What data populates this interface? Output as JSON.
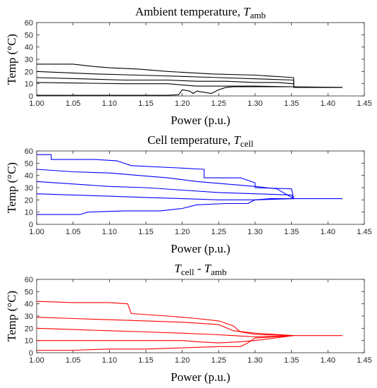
{
  "chart_data": [
    {
      "type": "line",
      "title_parts": {
        "text": "Ambient temperature, ",
        "math": "T",
        "sub": "amb"
      },
      "xlabel": "Power (p.u.)",
      "ylabel": "Temp (°C)",
      "xlim": [
        1.0,
        1.45
      ],
      "ylim": [
        0,
        60
      ],
      "xticks": [
        "1.00",
        "1.05",
        "1.10",
        "1.15",
        "1.20",
        "1.25",
        "1.30",
        "1.35",
        "1.40",
        "1.45"
      ],
      "yticks": [
        "0",
        "10",
        "20",
        "30",
        "40",
        "50",
        "60"
      ],
      "color": "#000000",
      "series": [
        {
          "x": [
            1.0,
            1.05,
            1.08,
            1.1,
            1.14,
            1.18,
            1.24,
            1.3,
            1.353,
            1.353,
            1.42
          ],
          "y": [
            26,
            26,
            24,
            23,
            22,
            20,
            18,
            17,
            15,
            7,
            7
          ]
        },
        {
          "x": [
            1.0,
            1.04,
            1.08,
            1.14,
            1.2,
            1.25,
            1.3,
            1.353,
            1.353,
            1.42
          ],
          "y": [
            20,
            19,
            18,
            17,
            16,
            15,
            14,
            13,
            7,
            7
          ]
        },
        {
          "x": [
            1.0,
            1.06,
            1.12,
            1.18,
            1.22,
            1.26,
            1.3,
            1.33,
            1.353
          ],
          "y": [
            15,
            14,
            13,
            13,
            12,
            12,
            11,
            11,
            10
          ]
        },
        {
          "x": [
            1.0,
            1.06,
            1.12,
            1.18,
            1.2,
            1.22,
            1.25,
            1.3,
            1.353,
            1.42
          ],
          "y": [
            11,
            10.5,
            10,
            10,
            9,
            8,
            8,
            8,
            7.5,
            7
          ]
        },
        {
          "x": [
            1.0,
            1.18,
            1.195,
            1.2,
            1.21,
            1.215,
            1.22,
            1.23,
            1.24,
            1.25,
            1.26,
            1.27,
            1.3,
            1.353
          ],
          "y": [
            0.5,
            0.5,
            1,
            5,
            4,
            2,
            4,
            3,
            2,
            5,
            7,
            7.5,
            7.5,
            7.5
          ]
        }
      ]
    },
    {
      "type": "line",
      "title_parts": {
        "text": "Cell temperature, ",
        "math": "T",
        "sub": "cell"
      },
      "xlabel": "Power (p.u.)",
      "ylabel": "Temp (°C)",
      "xlim": [
        1.0,
        1.45
      ],
      "ylim": [
        0,
        60
      ],
      "xticks": [
        "1.00",
        "1.05",
        "1.10",
        "1.15",
        "1.20",
        "1.25",
        "1.30",
        "1.35",
        "1.40",
        "1.45"
      ],
      "yticks": [
        "0",
        "10",
        "20",
        "30",
        "40",
        "50",
        "60"
      ],
      "color": "#0000ff",
      "series": [
        {
          "x": [
            1.0,
            1.02,
            1.02,
            1.08,
            1.11,
            1.13,
            1.2,
            1.23,
            1.23,
            1.28,
            1.3,
            1.3,
            1.35,
            1.353,
            1.42
          ],
          "y": [
            57,
            57,
            53,
            53,
            52,
            48,
            46,
            45,
            38,
            38,
            34,
            30,
            29,
            21,
            21
          ]
        },
        {
          "x": [
            1.0,
            1.05,
            1.1,
            1.14,
            1.18,
            1.22,
            1.26,
            1.3,
            1.33,
            1.353
          ],
          "y": [
            45,
            43,
            42,
            40,
            38,
            35,
            33,
            31,
            29,
            21
          ]
        },
        {
          "x": [
            1.0,
            1.05,
            1.1,
            1.15,
            1.2,
            1.25,
            1.3,
            1.35,
            1.353
          ],
          "y": [
            35,
            33,
            31,
            30,
            28,
            26,
            25,
            24,
            21
          ]
        },
        {
          "x": [
            1.0,
            1.05,
            1.1,
            1.15,
            1.2,
            1.25,
            1.3,
            1.353
          ],
          "y": [
            25,
            24,
            23,
            22,
            21,
            20,
            20,
            21
          ]
        },
        {
          "x": [
            1.0,
            1.06,
            1.07,
            1.12,
            1.17,
            1.2,
            1.22,
            1.26,
            1.29,
            1.3,
            1.32,
            1.353
          ],
          "y": [
            8,
            8,
            10,
            11,
            11,
            13,
            16,
            17,
            17,
            20,
            21,
            21
          ]
        }
      ]
    },
    {
      "type": "line",
      "title_parts": {
        "text": "",
        "math": "T",
        "sub": "cell",
        "mid": " - ",
        "math2": "T",
        "sub2": "amb"
      },
      "xlabel": "Power (p.u.)",
      "ylabel": "Temp (°C)",
      "xlim": [
        1.0,
        1.45
      ],
      "ylim": [
        0,
        60
      ],
      "xticks": [
        "1.00",
        "1.05",
        "1.10",
        "1.15",
        "1.20",
        "1.25",
        "1.30",
        "1.35",
        "1.40",
        "1.45"
      ],
      "yticks": [
        "0",
        "10",
        "20",
        "30",
        "40",
        "50",
        "60"
      ],
      "color": "#ff0000",
      "series": [
        {
          "x": [
            1.0,
            1.05,
            1.1,
            1.125,
            1.13,
            1.18,
            1.22,
            1.25,
            1.27,
            1.28,
            1.3,
            1.353,
            1.42
          ],
          "y": [
            42,
            41,
            41,
            40,
            32,
            30,
            28,
            26,
            22,
            17,
            15,
            14,
            14
          ]
        },
        {
          "x": [
            1.0,
            1.05,
            1.1,
            1.15,
            1.2,
            1.25,
            1.27,
            1.3,
            1.353
          ],
          "y": [
            29,
            28,
            27,
            26,
            25,
            23,
            18,
            16,
            14
          ]
        },
        {
          "x": [
            1.0,
            1.05,
            1.1,
            1.15,
            1.2,
            1.24,
            1.27,
            1.3,
            1.353
          ],
          "y": [
            20,
            19,
            18,
            17,
            16,
            15,
            14,
            13,
            14
          ]
        },
        {
          "x": [
            1.0,
            1.05,
            1.1,
            1.15,
            1.2,
            1.22,
            1.25,
            1.28,
            1.3,
            1.353
          ],
          "y": [
            10,
            10,
            10,
            10,
            10,
            9,
            8,
            9,
            10,
            14
          ]
        },
        {
          "x": [
            1.0,
            1.05,
            1.1,
            1.15,
            1.2,
            1.25,
            1.28,
            1.29,
            1.3,
            1.353
          ],
          "y": [
            2,
            2,
            3,
            3,
            4,
            5,
            5,
            8,
            12,
            14
          ]
        }
      ]
    }
  ]
}
